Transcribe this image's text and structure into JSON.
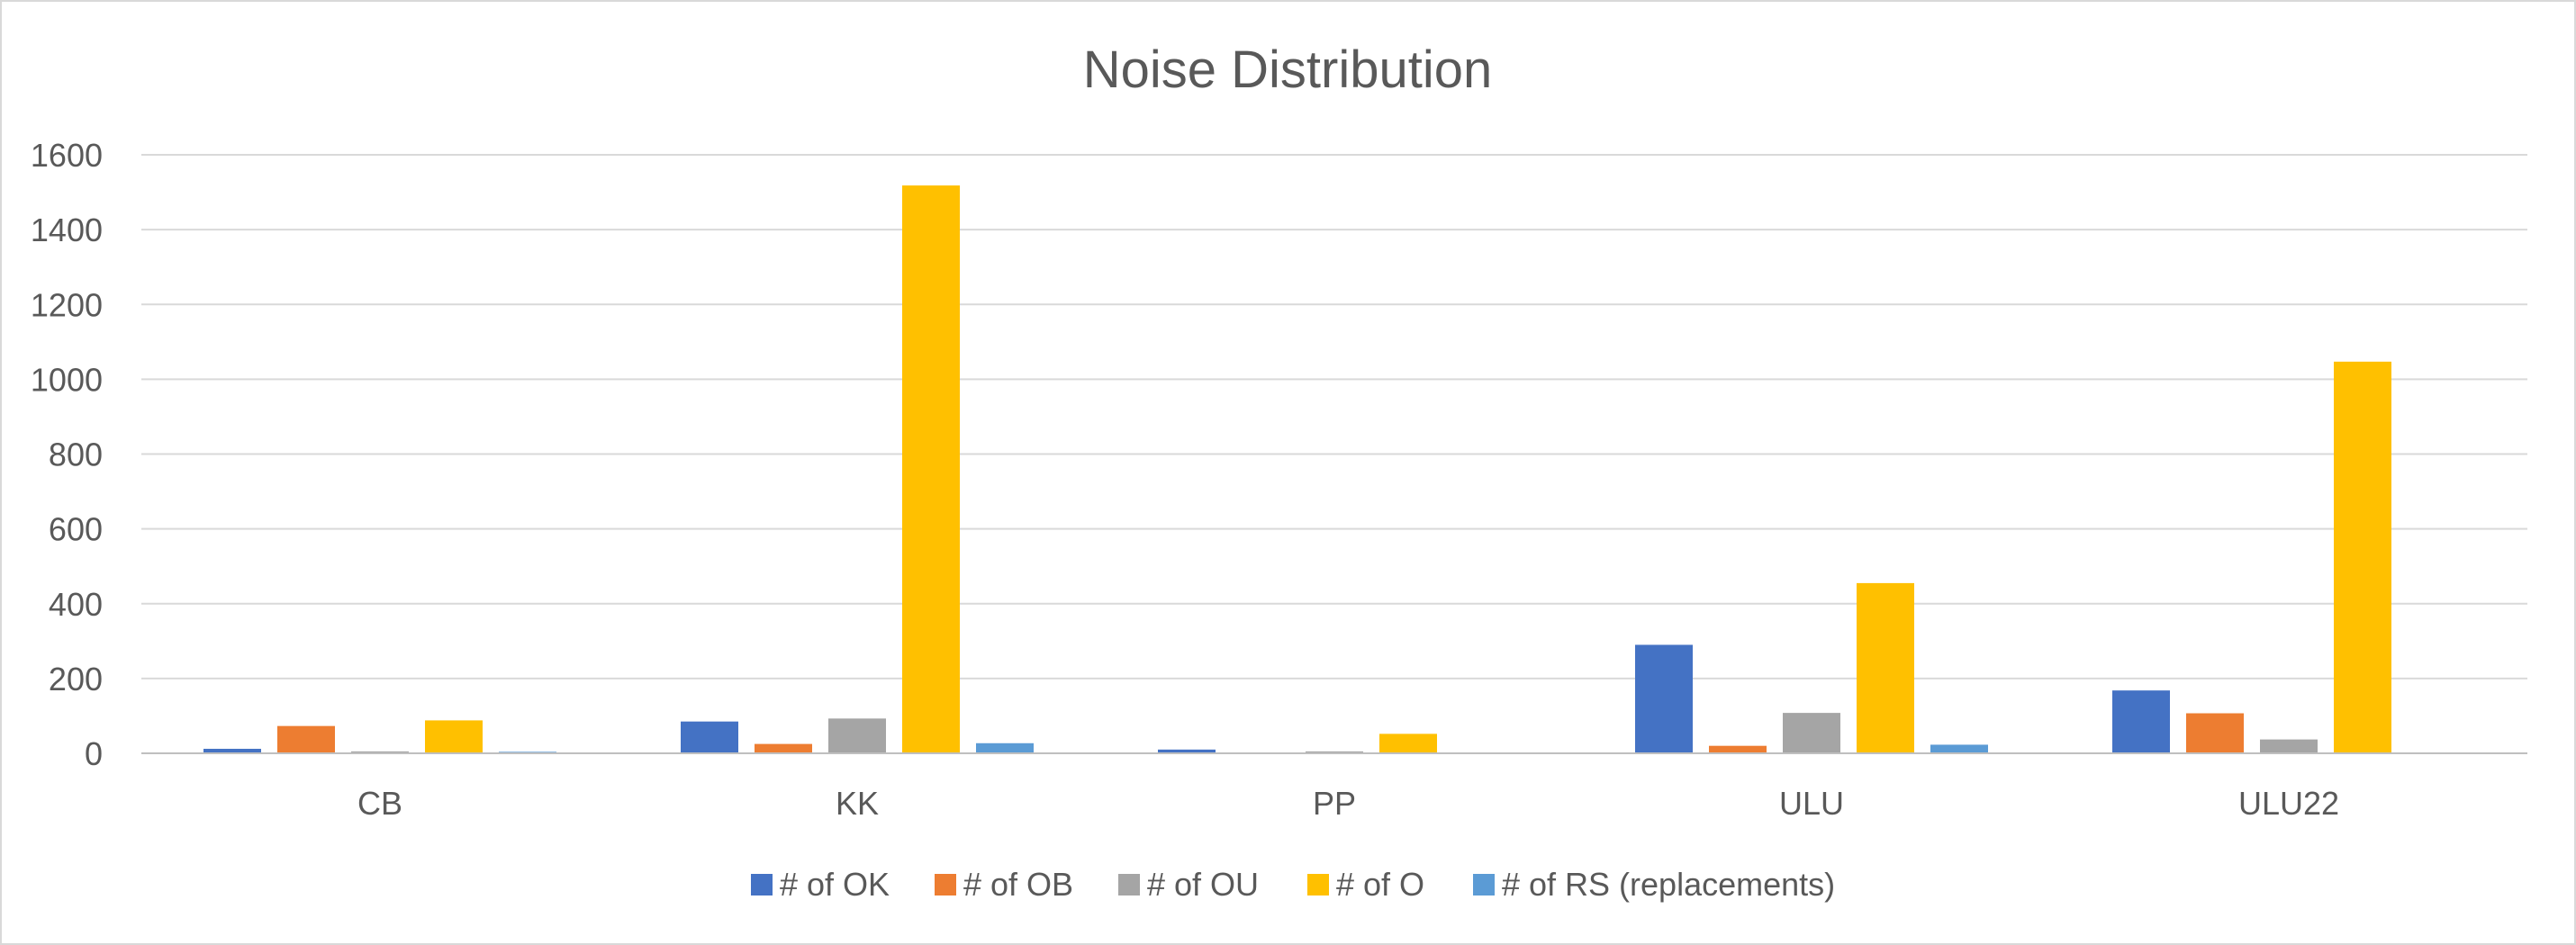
{
  "chart_data": {
    "type": "bar",
    "title": "Noise Distribution",
    "xlabel": "",
    "ylabel": "",
    "categories": [
      "CB",
      "KK",
      "PP",
      "ULU",
      "ULU22"
    ],
    "ylim": [
      0,
      1600
    ],
    "yticks": [
      0,
      200,
      400,
      600,
      800,
      1000,
      1200,
      1400,
      1600
    ],
    "grid": true,
    "legend_position": "bottom",
    "series": [
      {
        "name": "# of OK",
        "color": "#4472C4",
        "values": [
          12,
          85,
          10,
          290,
          168
        ]
      },
      {
        "name": "# of OB",
        "color": "#ED7D31",
        "values": [
          73,
          25,
          0,
          20,
          107
        ]
      },
      {
        "name": "# of OU",
        "color": "#A5A5A5",
        "values": [
          5,
          93,
          5,
          108,
          37
        ]
      },
      {
        "name": "# of O",
        "color": "#FFC000",
        "values": [
          88,
          1518,
          52,
          455,
          1047
        ]
      },
      {
        "name": "# of RS (replacements)",
        "color": "#5B9BD5",
        "values": [
          4,
          27,
          0,
          23,
          0
        ]
      }
    ]
  }
}
